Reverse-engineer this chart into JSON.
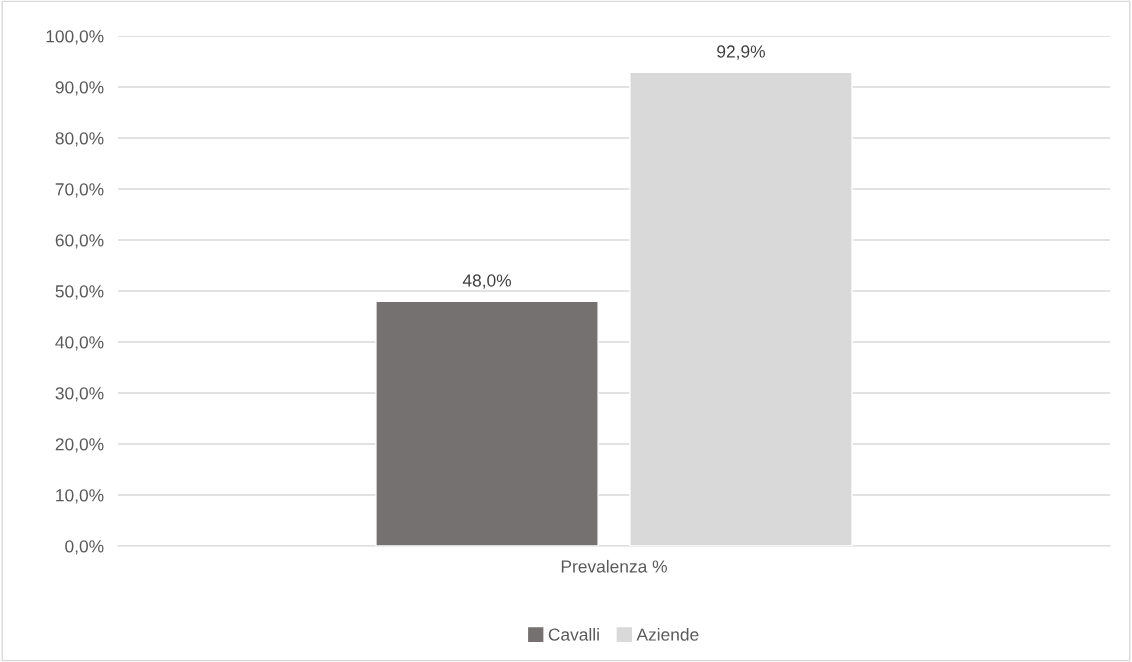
{
  "chart_data": {
    "type": "bar",
    "categories": [
      "Prevalenza %"
    ],
    "series": [
      {
        "name": "Cavalli",
        "color": "#767171",
        "values": [
          48.0
        ],
        "value_labels": [
          "48,0%"
        ]
      },
      {
        "name": "Aziende",
        "color": "#d9d9d9",
        "values": [
          92.9
        ],
        "value_labels": [
          "92,9%"
        ]
      }
    ],
    "ylim": [
      0,
      100
    ],
    "yticks": [
      {
        "value": 0,
        "label": "0,0%"
      },
      {
        "value": 10,
        "label": "10,0%"
      },
      {
        "value": 20,
        "label": "20,0%"
      },
      {
        "value": 30,
        "label": "30,0%"
      },
      {
        "value": 40,
        "label": "40,0%"
      },
      {
        "value": 50,
        "label": "50,0%"
      },
      {
        "value": 60,
        "label": "60,0%"
      },
      {
        "value": 70,
        "label": "70,0%"
      },
      {
        "value": 80,
        "label": "80,0%"
      },
      {
        "value": 90,
        "label": "90,0%"
      },
      {
        "value": 100,
        "label": "100,0%"
      }
    ],
    "grid": "y",
    "legend": "bottom"
  }
}
